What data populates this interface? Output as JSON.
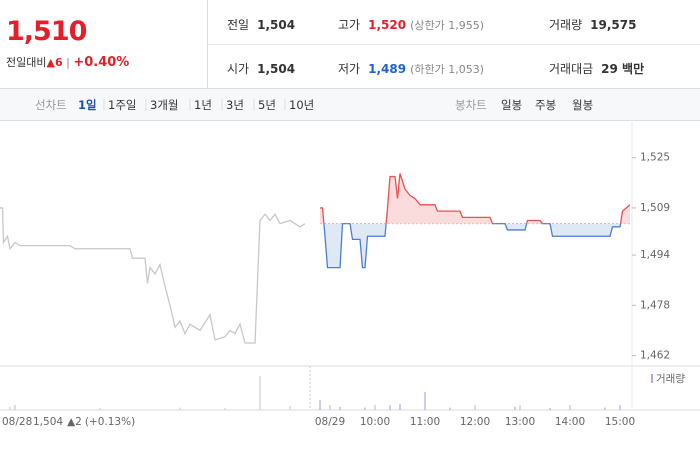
{
  "header": {
    "price": "1,510",
    "change_label": "전일대비",
    "change_arrow": "▲",
    "change": "6",
    "change_pct": "+0.40%",
    "stats": [
      [
        {
          "label": "전일",
          "value": "1,504"
        },
        {
          "label": "고가",
          "value": "1,520",
          "note": "(상한가 1,955)"
        },
        {
          "label": "거래량",
          "value": "19,575"
        }
      ],
      [
        {
          "label": "시가",
          "value": "1,504"
        },
        {
          "label": "저가",
          "value": "1,489",
          "note": "(하한가 1,053)"
        },
        {
          "label": "거래대금",
          "value": "29 백만"
        }
      ]
    ]
  },
  "tabs": {
    "line_label": "선차트",
    "periods": [
      "1일",
      "1주일",
      "3개월",
      "1년",
      "3년",
      "5년",
      "10년"
    ],
    "candle_label": "봉차트",
    "candles": [
      "일봉",
      "주봉",
      "월봉"
    ]
  },
  "chart_data": {
    "type": "line",
    "xlim": [
      0,
      126
    ],
    "ylim": [
      1459,
      1537
    ],
    "yticks": [
      {
        "value": 1525,
        "label": "1,525"
      },
      {
        "value": 1509,
        "label": "1,509"
      },
      {
        "value": 1494,
        "label": "1,494"
      },
      {
        "value": 1478,
        "label": "1,478"
      },
      {
        "value": 1462,
        "label": "1,462"
      }
    ],
    "xticks": [
      {
        "value": 3,
        "label": "08/28"
      },
      {
        "value": 66,
        "label": "08/29"
      },
      {
        "value": 75,
        "label": "10:00"
      },
      {
        "value": 85,
        "label": "11:00"
      },
      {
        "value": 95,
        "label": "12:00"
      },
      {
        "value": 104,
        "label": "13:00"
      },
      {
        "value": 114,
        "label": "14:00"
      },
      {
        "value": 124,
        "label": "15:00"
      }
    ],
    "baseline": 1504,
    "series": [
      {
        "color": "#c8c8c8",
        "x": [
          0,
          0.5,
          0.7,
          1.5,
          2,
          3,
          4,
          14,
          15,
          26,
          26.5,
          29,
          29.5,
          30,
          31,
          32,
          33,
          34,
          35,
          36,
          37,
          38,
          40,
          42,
          43,
          45,
          46,
          47,
          48,
          49,
          51,
          52,
          53,
          54,
          55,
          56,
          58,
          60,
          61
        ],
        "values": [
          1509,
          1509,
          1498,
          1500,
          1496,
          1498,
          1497,
          1497,
          1496,
          1496,
          1493,
          1493,
          1485,
          1490,
          1488,
          1491,
          1484,
          1478,
          1471,
          1473,
          1469,
          1472,
          1470,
          1475,
          1467,
          1468,
          1470,
          1469,
          1472,
          1466,
          1466,
          1505,
          1507,
          1505,
          1507,
          1504,
          1505,
          1503,
          1504
        ]
      },
      {
        "color": "#e8514f",
        "color_below": "#4a7fd0",
        "fill": "#fbdcdc",
        "fill_below": "#dfe9f6",
        "x": [
          64,
          64.5,
          65,
          65.5,
          68,
          68.5,
          70,
          70.5,
          72,
          72.5,
          73,
          73.5,
          77,
          77.5,
          78,
          79,
          79.5,
          80,
          81,
          82,
          83,
          84,
          87,
          87.5,
          92,
          92.5,
          98,
          98.5,
          101,
          101.5,
          105,
          105.5,
          108,
          108.5,
          110,
          110.5,
          122,
          122.5,
          124,
          124.5,
          126
        ],
        "values": [
          1509,
          1509,
          1500,
          1490,
          1490,
          1504,
          1504,
          1499,
          1499,
          1490,
          1490,
          1500,
          1500,
          1509,
          1519,
          1519,
          1512,
          1520,
          1515,
          1513,
          1512,
          1510,
          1510,
          1508,
          1508,
          1506,
          1506,
          1504,
          1504,
          1502,
          1502,
          1505,
          1505,
          1504,
          1504,
          1500,
          1500,
          1503,
          1503,
          1508,
          1510
        ]
      }
    ],
    "volume": {
      "name": "거래량",
      "ylim": [
        0,
        100
      ],
      "series": [
        {
          "color": "#d0d0d0",
          "x": [
            2,
            20,
            36,
            45,
            52,
            58
          ],
          "values": [
            8,
            5,
            6,
            5,
            85,
            10
          ]
        },
        {
          "color": "#b9a4e0",
          "x": [
            64,
            68,
            73,
            78,
            80,
            85,
            90,
            103,
            110,
            121,
            124
          ],
          "values": [
            25,
            8,
            6,
            12,
            15,
            45,
            6,
            8,
            5,
            6,
            12
          ]
        }
      ]
    },
    "prev_day": {
      "date": "08/28",
      "close": "1,504",
      "arrow": "▲",
      "change": "2",
      "pct": "(+0.13%)"
    }
  }
}
